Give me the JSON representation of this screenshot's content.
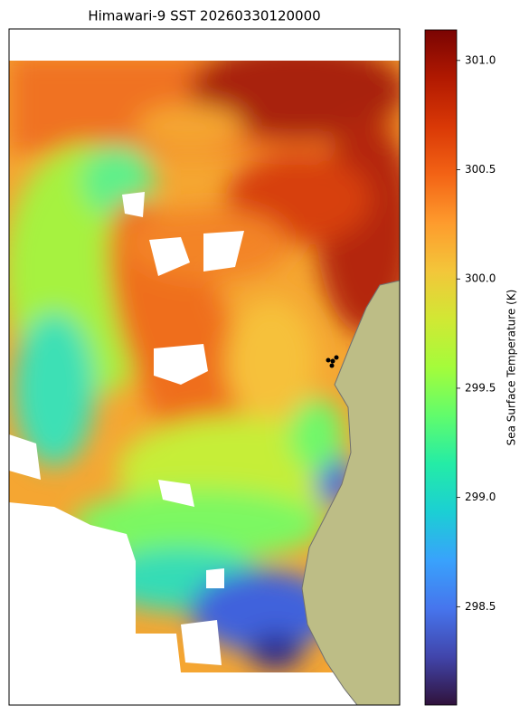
{
  "title": "Himawari-9 SST 20260330120000",
  "colorbar": {
    "label": "Sea Surface Temperature (K)",
    "colormap": "turbo",
    "lim": [
      298.05,
      301.14
    ],
    "ticks": [
      298.5,
      {
        "value": 299,
        "label": "299.0"
      },
      299.5,
      {
        "value": 300,
        "label": "300.0"
      },
      300.5,
      {
        "value": 301,
        "label": "301.0"
      }
    ]
  }
}
